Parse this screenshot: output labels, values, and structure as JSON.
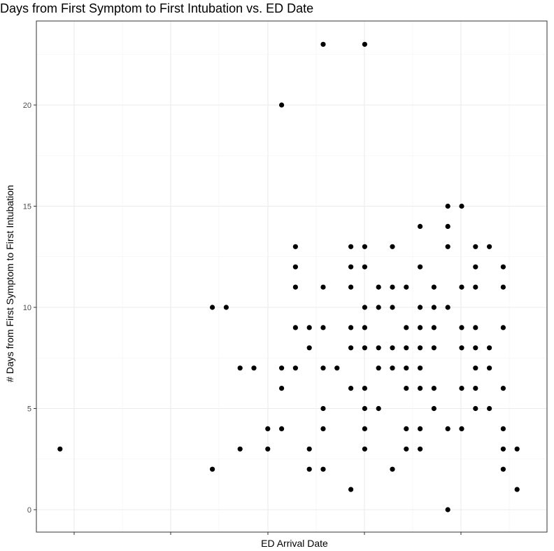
{
  "chart_data": {
    "type": "scatter",
    "title": "Days from First Symptom to First Intubation vs. ED Date",
    "xlabel": "ED Arrival Date",
    "ylabel": "# Days from First Symptom to First Intubation",
    "ylim": [
      -1,
      23.5
    ],
    "y_ticks": [
      0,
      5,
      10,
      15,
      20
    ],
    "x_tick_labels": [],
    "grid": true,
    "legend": "none",
    "point_color": "#000000",
    "points": [
      {
        "x": 1,
        "y": 3
      },
      {
        "x": 12,
        "y": 10
      },
      {
        "x": 12,
        "y": 2
      },
      {
        "x": 13,
        "y": 10
      },
      {
        "x": 14,
        "y": 7
      },
      {
        "x": 14,
        "y": 3
      },
      {
        "x": 15,
        "y": 7
      },
      {
        "x": 16,
        "y": 4
      },
      {
        "x": 16,
        "y": 3
      },
      {
        "x": 17,
        "y": 20
      },
      {
        "x": 17,
        "y": 7
      },
      {
        "x": 17,
        "y": 6
      },
      {
        "x": 17,
        "y": 4
      },
      {
        "x": 18,
        "y": 13
      },
      {
        "x": 18,
        "y": 12
      },
      {
        "x": 18,
        "y": 11
      },
      {
        "x": 18,
        "y": 9
      },
      {
        "x": 18,
        "y": 7
      },
      {
        "x": 19,
        "y": 9
      },
      {
        "x": 19,
        "y": 8
      },
      {
        "x": 19,
        "y": 3
      },
      {
        "x": 19,
        "y": 2
      },
      {
        "x": 20,
        "y": 23
      },
      {
        "x": 20,
        "y": 11
      },
      {
        "x": 20,
        "y": 9
      },
      {
        "x": 20,
        "y": 7
      },
      {
        "x": 20,
        "y": 5
      },
      {
        "x": 20,
        "y": 4
      },
      {
        "x": 20,
        "y": 2
      },
      {
        "x": 21,
        "y": 7
      },
      {
        "x": 22,
        "y": 13
      },
      {
        "x": 22,
        "y": 12
      },
      {
        "x": 22,
        "y": 11
      },
      {
        "x": 22,
        "y": 9
      },
      {
        "x": 22,
        "y": 8
      },
      {
        "x": 22,
        "y": 6
      },
      {
        "x": 22,
        "y": 1
      },
      {
        "x": 23,
        "y": 23
      },
      {
        "x": 23,
        "y": 13
      },
      {
        "x": 23,
        "y": 12
      },
      {
        "x": 23,
        "y": 10
      },
      {
        "x": 23,
        "y": 9
      },
      {
        "x": 23,
        "y": 8
      },
      {
        "x": 23,
        "y": 6
      },
      {
        "x": 23,
        "y": 5
      },
      {
        "x": 23,
        "y": 4
      },
      {
        "x": 23,
        "y": 3
      },
      {
        "x": 24,
        "y": 11
      },
      {
        "x": 24,
        "y": 10
      },
      {
        "x": 24,
        "y": 8
      },
      {
        "x": 24,
        "y": 7
      },
      {
        "x": 24,
        "y": 5
      },
      {
        "x": 25,
        "y": 13
      },
      {
        "x": 25,
        "y": 11
      },
      {
        "x": 25,
        "y": 10
      },
      {
        "x": 25,
        "y": 8
      },
      {
        "x": 25,
        "y": 7
      },
      {
        "x": 25,
        "y": 2
      },
      {
        "x": 26,
        "y": 11
      },
      {
        "x": 26,
        "y": 9
      },
      {
        "x": 26,
        "y": 8
      },
      {
        "x": 26,
        "y": 7
      },
      {
        "x": 26,
        "y": 6
      },
      {
        "x": 26,
        "y": 4
      },
      {
        "x": 26,
        "y": 3
      },
      {
        "x": 27,
        "y": 14
      },
      {
        "x": 27,
        "y": 12
      },
      {
        "x": 27,
        "y": 10
      },
      {
        "x": 27,
        "y": 9
      },
      {
        "x": 27,
        "y": 8
      },
      {
        "x": 27,
        "y": 7
      },
      {
        "x": 27,
        "y": 6
      },
      {
        "x": 27,
        "y": 4
      },
      {
        "x": 27,
        "y": 3
      },
      {
        "x": 28,
        "y": 11
      },
      {
        "x": 28,
        "y": 10
      },
      {
        "x": 28,
        "y": 9
      },
      {
        "x": 28,
        "y": 8
      },
      {
        "x": 28,
        "y": 6
      },
      {
        "x": 28,
        "y": 5
      },
      {
        "x": 29,
        "y": 15
      },
      {
        "x": 29,
        "y": 14
      },
      {
        "x": 29,
        "y": 13
      },
      {
        "x": 29,
        "y": 10
      },
      {
        "x": 29,
        "y": 4
      },
      {
        "x": 29,
        "y": 0
      },
      {
        "x": 30,
        "y": 15
      },
      {
        "x": 30,
        "y": 11
      },
      {
        "x": 30,
        "y": 9
      },
      {
        "x": 30,
        "y": 8
      },
      {
        "x": 30,
        "y": 6
      },
      {
        "x": 30,
        "y": 4
      },
      {
        "x": 31,
        "y": 13
      },
      {
        "x": 31,
        "y": 12
      },
      {
        "x": 31,
        "y": 11
      },
      {
        "x": 31,
        "y": 9
      },
      {
        "x": 31,
        "y": 8
      },
      {
        "x": 31,
        "y": 7
      },
      {
        "x": 31,
        "y": 6
      },
      {
        "x": 31,
        "y": 5
      },
      {
        "x": 32,
        "y": 13
      },
      {
        "x": 32,
        "y": 8
      },
      {
        "x": 32,
        "y": 7
      },
      {
        "x": 32,
        "y": 5
      },
      {
        "x": 33,
        "y": 12
      },
      {
        "x": 33,
        "y": 11
      },
      {
        "x": 33,
        "y": 9
      },
      {
        "x": 33,
        "y": 6
      },
      {
        "x": 33,
        "y": 4
      },
      {
        "x": 33,
        "y": 3
      },
      {
        "x": 33,
        "y": 2
      },
      {
        "x": 34,
        "y": 3
      },
      {
        "x": 34,
        "y": 1
      }
    ]
  }
}
